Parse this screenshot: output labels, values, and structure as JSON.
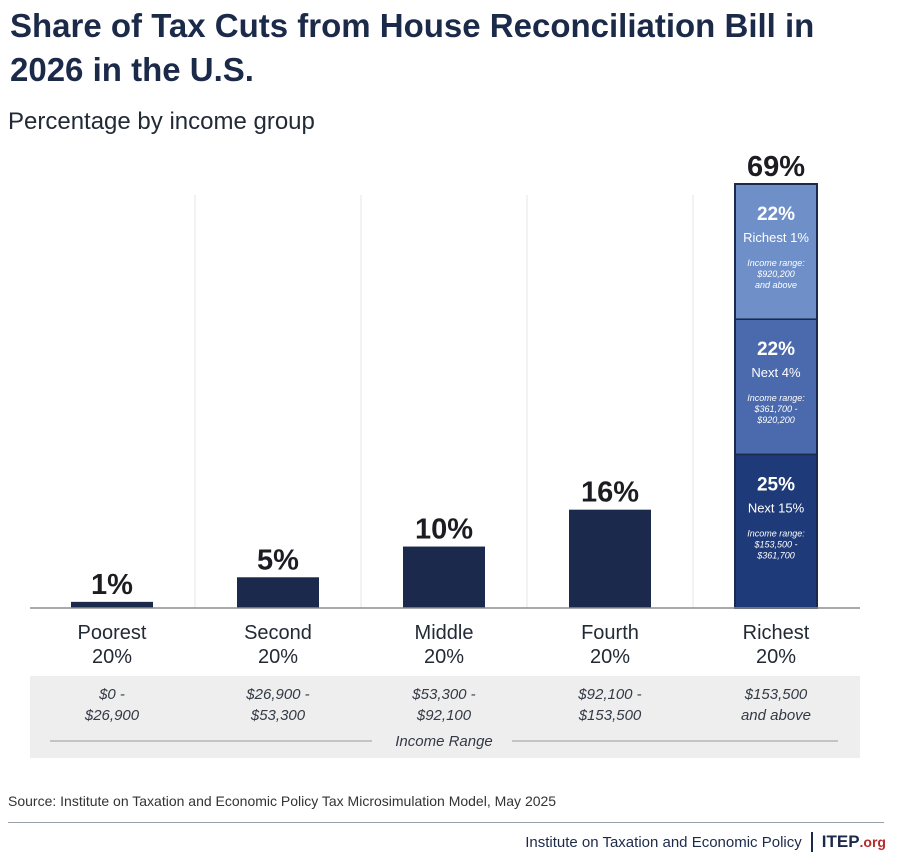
{
  "title": "Share of Tax Cuts from House Reconciliation Bill in 2026 in the U.S.",
  "subtitle": "Percentage by income group",
  "colors": {
    "bar": "#1b2a4c",
    "seg_next15": "#1f3a78",
    "seg_next4": "#4a6aad",
    "seg_richest1": "#6f8fc8",
    "range_band": "#eeeeee"
  },
  "chart_data": {
    "type": "bar",
    "categories": [
      "Poorest 20%",
      "Second 20%",
      "Middle 20%",
      "Fourth 20%",
      "Richest 20%"
    ],
    "category_lines": [
      [
        "Poorest",
        "20%"
      ],
      [
        "Second",
        "20%"
      ],
      [
        "Middle",
        "20%"
      ],
      [
        "Fourth",
        "20%"
      ],
      [
        "Richest",
        "20%"
      ]
    ],
    "values": [
      1,
      5,
      10,
      16,
      69
    ],
    "value_labels": [
      "1%",
      "5%",
      "10%",
      "16%",
      "69%"
    ],
    "ylim": [
      0,
      69
    ],
    "grid": true,
    "richest_breakdown": [
      {
        "value": 25,
        "label": "25%",
        "name": "Next 15%",
        "range_title": "Income range:",
        "range_lines": [
          "$153,500 -",
          "$361,700"
        ]
      },
      {
        "value": 22,
        "label": "22%",
        "name": "Next 4%",
        "range_title": "Income range:",
        "range_lines": [
          "$361,700 -",
          "$920,200"
        ]
      },
      {
        "value": 22,
        "label": "22%",
        "name": "Richest 1%",
        "range_title": "Income range:",
        "range_lines": [
          "$920,200",
          "and above"
        ]
      }
    ],
    "income_ranges": [
      [
        "$0 -",
        "$26,900"
      ],
      [
        "$26,900 -",
        "$53,300"
      ],
      [
        "$53,300 -",
        "$92,100"
      ],
      [
        "$92,100 -",
        "$153,500"
      ],
      [
        "$153,500",
        "and above"
      ]
    ],
    "income_range_label": "Income Range"
  },
  "source": "Source: Institute on Taxation and Economic Policy Tax Microsimulation Model, May 2025",
  "footer": {
    "org": "Institute on Taxation and Economic Policy",
    "brand": "ITEP",
    "brand_suffix": ".org"
  }
}
